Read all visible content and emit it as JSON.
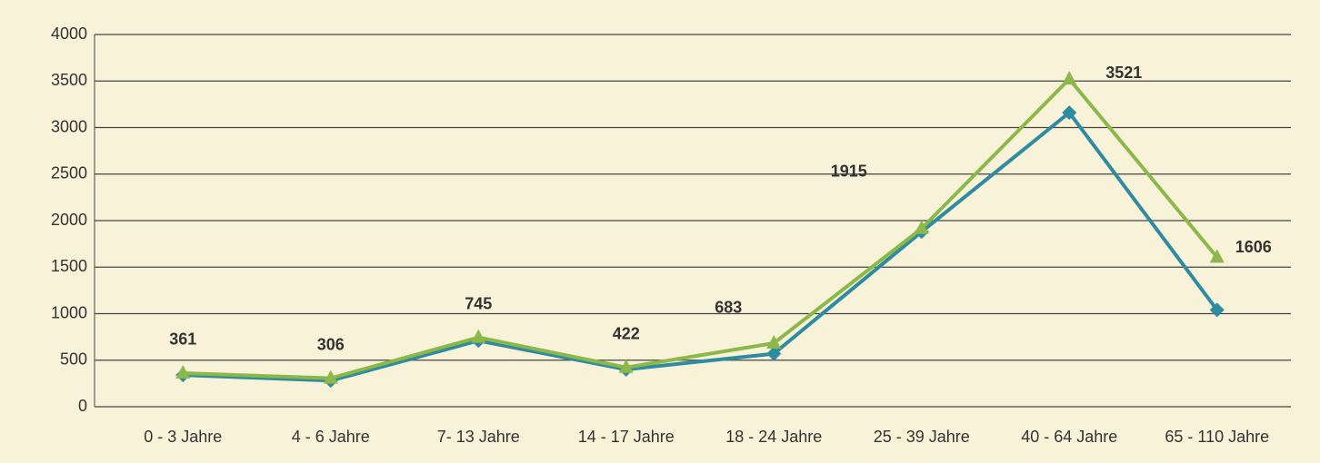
{
  "chart_data": {
    "type": "line",
    "categories": [
      "0 -  3 Jahre",
      "4 -  6 Jahre",
      "7-  13 Jahre",
      "14 - 17 Jahre",
      "18 - 24 Jahre",
      "25 - 39 Jahre",
      "40 - 64 Jahre",
      "65 - 110 Jahre"
    ],
    "series": [
      {
        "color": "#2e8ba0",
        "marker": "diamond",
        "values": [
          340,
          280,
          710,
          400,
          570,
          1880,
          3160,
          1040
        ]
      },
      {
        "color": "#8cb84a",
        "marker": "triangle",
        "values": [
          361,
          306,
          745,
          422,
          683,
          1915,
          3521,
          1606
        ],
        "data_labels": true
      }
    ],
    "ylim": [
      0,
      4000
    ],
    "yticks": [
      0,
      500,
      1000,
      1500,
      2000,
      2500,
      3000,
      3500,
      4000
    ],
    "grid": true
  }
}
